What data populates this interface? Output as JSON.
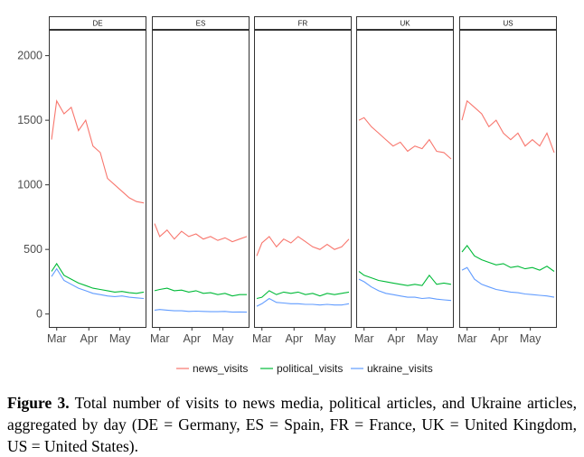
{
  "chart_data": {
    "type": "line",
    "facet_by": "country",
    "panels": [
      "DE",
      "ES",
      "FR",
      "UK",
      "US"
    ],
    "x": [
      "2022-02-24",
      "2022-03-01",
      "2022-03-08",
      "2022-03-15",
      "2022-03-22",
      "2022-03-29",
      "2022-04-05",
      "2022-04-12",
      "2022-04-19",
      "2022-04-26",
      "2022-05-03",
      "2022-05-10",
      "2022-05-17",
      "2022-05-24"
    ],
    "x_ticks": [
      "Mar",
      "Apr",
      "May"
    ],
    "y_ticks": [
      "0",
      "500",
      "1000",
      "1500",
      "2000"
    ],
    "ylim": [
      -100,
      2200
    ],
    "grid": false,
    "legend_position": "bottom",
    "colors": {
      "news_visits": "#F8766D",
      "political_visits": "#00BA38",
      "ukraine_visits": "#619CFF"
    },
    "series": {
      "DE": [
        {
          "name": "news_visits",
          "values": [
            1350,
            1650,
            1550,
            1600,
            1420,
            1500,
            1300,
            1250,
            1050,
            1000,
            950,
            900,
            870,
            860
          ]
        },
        {
          "name": "political_visits",
          "values": [
            330,
            390,
            300,
            270,
            240,
            220,
            200,
            190,
            180,
            170,
            175,
            165,
            160,
            170
          ]
        },
        {
          "name": "ukraine_visits",
          "values": [
            290,
            350,
            260,
            230,
            200,
            180,
            160,
            150,
            140,
            135,
            140,
            130,
            125,
            120
          ]
        }
      ],
      "ES": [
        {
          "name": "news_visits",
          "values": [
            700,
            600,
            650,
            580,
            640,
            600,
            620,
            580,
            600,
            570,
            590,
            560,
            580,
            600
          ]
        },
        {
          "name": "political_visits",
          "values": [
            180,
            190,
            200,
            180,
            185,
            170,
            180,
            160,
            165,
            150,
            160,
            140,
            150,
            150
          ]
        },
        {
          "name": "ukraine_visits",
          "values": [
            30,
            35,
            30,
            25,
            25,
            20,
            22,
            20,
            18,
            18,
            20,
            15,
            16,
            15
          ]
        }
      ],
      "FR": [
        {
          "name": "news_visits",
          "values": [
            450,
            550,
            600,
            520,
            580,
            550,
            600,
            560,
            520,
            500,
            540,
            500,
            520,
            580
          ]
        },
        {
          "name": "political_visits",
          "values": [
            120,
            130,
            180,
            150,
            170,
            160,
            170,
            150,
            160,
            140,
            160,
            150,
            160,
            170
          ]
        },
        {
          "name": "ukraine_visits",
          "values": [
            60,
            80,
            120,
            90,
            85,
            80,
            80,
            75,
            75,
            70,
            75,
            70,
            70,
            80
          ]
        }
      ],
      "UK": [
        {
          "name": "news_visits",
          "values": [
            1500,
            1520,
            1450,
            1400,
            1350,
            1300,
            1330,
            1260,
            1300,
            1280,
            1350,
            1260,
            1250,
            1200
          ]
        },
        {
          "name": "political_visits",
          "values": [
            330,
            300,
            280,
            260,
            250,
            240,
            230,
            220,
            230,
            220,
            300,
            230,
            240,
            230
          ]
        },
        {
          "name": "ukraine_visits",
          "values": [
            270,
            250,
            210,
            180,
            160,
            150,
            140,
            130,
            130,
            120,
            125,
            115,
            110,
            105
          ]
        }
      ],
      "US": [
        {
          "name": "news_visits",
          "values": [
            1500,
            1650,
            1600,
            1550,
            1450,
            1500,
            1400,
            1350,
            1400,
            1300,
            1350,
            1300,
            1400,
            1250
          ]
        },
        {
          "name": "political_visits",
          "values": [
            480,
            530,
            450,
            420,
            400,
            380,
            390,
            360,
            370,
            350,
            360,
            340,
            370,
            330
          ]
        },
        {
          "name": "ukraine_visits",
          "values": [
            340,
            360,
            270,
            230,
            210,
            190,
            180,
            170,
            165,
            155,
            150,
            145,
            140,
            130
          ]
        }
      ]
    }
  },
  "caption": {
    "label": "Figure 3.",
    "text": " Total number of visits to news media, political articles, and Ukraine articles, aggregated by day (DE = Germany, ES = Spain, FR = France, UK = United Kingdom, US = United States)."
  }
}
